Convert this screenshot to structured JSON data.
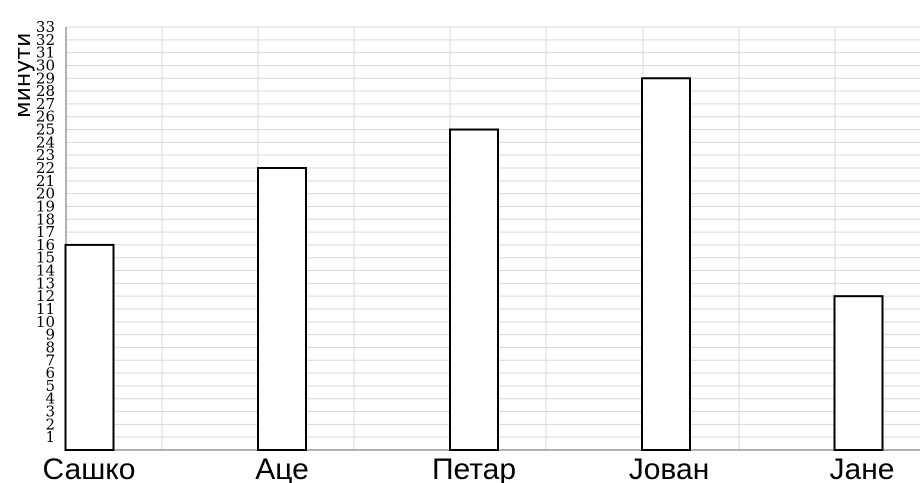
{
  "chart_data": {
    "type": "bar",
    "title": "",
    "xlabel": "",
    "ylabel": "минути",
    "categories": [
      "Сашко",
      "Аце",
      "Петар",
      "Јован",
      "Јане"
    ],
    "values": [
      16,
      22,
      25,
      29,
      12
    ],
    "ylim": [
      0,
      33
    ],
    "yticks": [
      1,
      2,
      3,
      4,
      5,
      6,
      7,
      8,
      9,
      10,
      11,
      12,
      13,
      14,
      15,
      16,
      17,
      18,
      19,
      20,
      21,
      22,
      23,
      24,
      25,
      26,
      27,
      28,
      29,
      30,
      31,
      32,
      33
    ],
    "grid": "on",
    "legend": "none",
    "colors": {
      "bar_fill": "#ffffff",
      "bar_stroke": "#000000",
      "grid": "#d9d9d9",
      "text": "#000000"
    }
  }
}
